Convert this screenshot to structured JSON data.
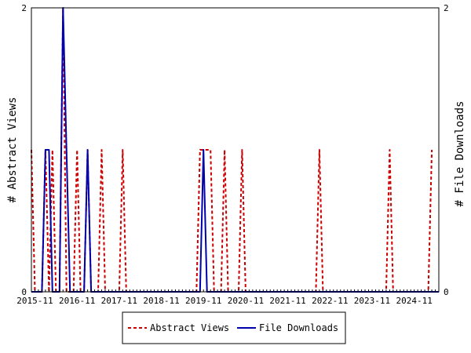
{
  "chart_data": {
    "type": "line",
    "x_ticks": [
      "2015-11",
      "2016-11",
      "2017-11",
      "2018-11",
      "2019-11",
      "2020-11",
      "2021-11",
      "2022-11",
      "2023-11",
      "2024-11"
    ],
    "xlim": [
      "2015-10",
      "2025-06"
    ],
    "ylabel_left": "# Abstract Views",
    "ylabel_right": "# File Downloads",
    "ylim_left": [
      0,
      2
    ],
    "ylim_right": [
      0,
      2
    ],
    "y_ticks_left": [
      "0",
      "2"
    ],
    "y_ticks_right": [
      "0",
      "2"
    ],
    "grid": false,
    "legend_position": "bottom-center",
    "series": [
      {
        "name": "Abstract Views",
        "color": "#cc0000",
        "style": "dashed",
        "axis": "left",
        "points": [
          [
            "2015-10",
            1
          ],
          [
            "2015-11",
            0
          ],
          [
            "2016-01",
            0
          ],
          [
            "2016-02",
            1
          ],
          [
            "2016-03",
            0
          ],
          [
            "2016-04",
            1
          ],
          [
            "2016-05",
            0
          ],
          [
            "2016-06",
            0
          ],
          [
            "2016-07",
            2
          ],
          [
            "2016-08",
            0
          ],
          [
            "2016-10",
            0
          ],
          [
            "2016-11",
            1
          ],
          [
            "2016-12",
            0
          ],
          [
            "2017-01",
            0
          ],
          [
            "2017-02",
            1
          ],
          [
            "2017-03",
            0
          ],
          [
            "2017-05",
            0
          ],
          [
            "2017-06",
            1
          ],
          [
            "2017-07",
            0
          ],
          [
            "2017-11",
            0
          ],
          [
            "2017-12",
            1
          ],
          [
            "2018-01",
            0
          ],
          [
            "2019-09",
            0
          ],
          [
            "2019-10",
            1
          ],
          [
            "2019-11",
            1
          ],
          [
            "2019-12",
            1
          ],
          [
            "2020-01",
            1
          ],
          [
            "2020-02",
            0
          ],
          [
            "2020-04",
            0
          ],
          [
            "2020-05",
            1
          ],
          [
            "2020-06",
            0
          ],
          [
            "2020-09",
            0
          ],
          [
            "2020-10",
            1
          ],
          [
            "2020-11",
            0
          ],
          [
            "2022-07",
            0
          ],
          [
            "2022-08",
            1
          ],
          [
            "2022-09",
            0
          ],
          [
            "2024-03",
            0
          ],
          [
            "2024-04",
            1
          ],
          [
            "2024-05",
            0
          ],
          [
            "2025-03",
            0
          ],
          [
            "2025-04",
            1
          ]
        ]
      },
      {
        "name": "File Downloads",
        "color": "#0000aa",
        "style": "solid",
        "axis": "right",
        "points": [
          [
            "2015-10",
            0
          ],
          [
            "2016-01",
            0
          ],
          [
            "2016-02",
            1
          ],
          [
            "2016-03",
            1
          ],
          [
            "2016-04",
            0
          ],
          [
            "2016-06",
            0
          ],
          [
            "2016-07",
            2
          ],
          [
            "2016-08",
            1
          ],
          [
            "2016-09",
            0
          ],
          [
            "2017-01",
            0
          ],
          [
            "2017-02",
            1
          ],
          [
            "2017-03",
            0
          ],
          [
            "2019-10",
            0
          ],
          [
            "2019-11",
            1
          ],
          [
            "2019-12",
            0
          ],
          [
            "2025-06",
            0
          ]
        ]
      }
    ]
  }
}
